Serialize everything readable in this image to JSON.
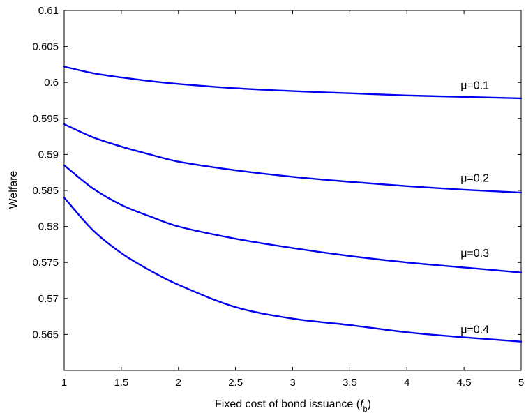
{
  "chart_data": {
    "type": "line",
    "title": "",
    "xlabel": "Fixed cost of bond issuance (",
    "xlabel_symbol": "f",
    "xlabel_subscript": "b",
    "xlabel_suffix": ")",
    "ylabel": "Welfare",
    "xlim": [
      1,
      5
    ],
    "ylim": [
      0.56,
      0.61
    ],
    "xticks": [
      1,
      1.5,
      2,
      2.5,
      3,
      3.5,
      4,
      4.5,
      5
    ],
    "xtick_labels": [
      "1",
      "1.5",
      "2",
      "2.5",
      "3",
      "3.5",
      "4",
      "4.5",
      "5"
    ],
    "yticks": [
      0.565,
      0.57,
      0.575,
      0.58,
      0.585,
      0.59,
      0.595,
      0.6,
      0.605,
      0.61
    ],
    "ytick_labels": [
      "0.565",
      "0.57",
      "0.575",
      "0.58",
      "0.585",
      "0.59",
      "0.595",
      "0.6",
      "0.605",
      "0.61"
    ],
    "grid": false,
    "line_color": "#0000ee",
    "x": [
      1,
      1.25,
      1.5,
      1.75,
      2,
      2.5,
      3,
      3.5,
      4,
      4.5,
      5
    ],
    "series": [
      {
        "label": "μ=0.1",
        "label_pos": [
          4.47,
          0.5991
        ],
        "values": [
          0.6022,
          0.6013,
          0.6007,
          0.6002,
          0.5998,
          0.5992,
          0.5988,
          0.5985,
          0.5982,
          0.598,
          0.5978
        ]
      },
      {
        "label": "μ=0.2",
        "label_pos": [
          4.47,
          0.5862
        ],
        "values": [
          0.5942,
          0.5924,
          0.5911,
          0.59,
          0.589,
          0.5878,
          0.5869,
          0.5862,
          0.5856,
          0.5851,
          0.5847
        ]
      },
      {
        "label": "μ=0.3",
        "label_pos": [
          4.47,
          0.5758
        ],
        "values": [
          0.5885,
          0.5853,
          0.583,
          0.5814,
          0.58,
          0.5783,
          0.577,
          0.5759,
          0.575,
          0.5743,
          0.5736
        ]
      },
      {
        "label": "μ=0.4",
        "label_pos": [
          4.47,
          0.5652
        ],
        "values": [
          0.584,
          0.5795,
          0.5763,
          0.5739,
          0.5719,
          0.5688,
          0.5672,
          0.5663,
          0.5653,
          0.5646,
          0.564
        ]
      }
    ]
  }
}
